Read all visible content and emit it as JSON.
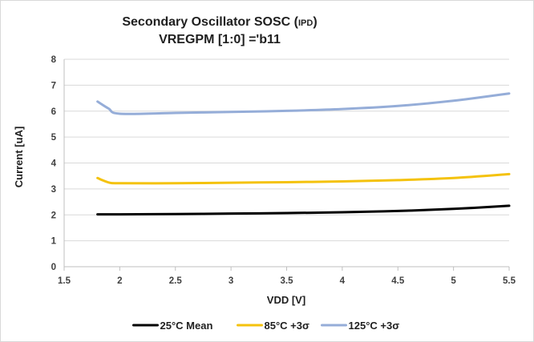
{
  "chart_data": {
    "type": "line",
    "title_line1": "Secondary Oscillator SOSC (",
    "title_subscript": "IPD",
    "title_line1_end": ")",
    "title_line2": "VREGPM [1:0] ='b11",
    "xlabel": "VDD [V]",
    "ylabel": "Current [uA]",
    "xlim": [
      1.5,
      5.5
    ],
    "ylim": [
      0,
      8
    ],
    "x_ticks": [
      "1.5",
      "2",
      "2.5",
      "3",
      "3.5",
      "4",
      "4.5",
      "5",
      "5.5"
    ],
    "y_ticks": [
      "0",
      "1",
      "2",
      "3",
      "4",
      "5",
      "6",
      "7",
      "8"
    ],
    "grid": "horizontal",
    "legend_position": "bottom",
    "series": [
      {
        "name": "25°C Mean",
        "color": "#000000",
        "points": [
          [
            1.8,
            2.02
          ],
          [
            2.0,
            2.02
          ],
          [
            2.5,
            2.03
          ],
          [
            3.0,
            2.05
          ],
          [
            3.5,
            2.07
          ],
          [
            4.0,
            2.1
          ],
          [
            4.5,
            2.15
          ],
          [
            5.0,
            2.23
          ],
          [
            5.5,
            2.35
          ]
        ]
      },
      {
        "name": "85°C +3σ",
        "color": "#f4c20d",
        "points": [
          [
            1.8,
            3.42
          ],
          [
            1.9,
            3.25
          ],
          [
            2.0,
            3.22
          ],
          [
            2.5,
            3.22
          ],
          [
            3.0,
            3.24
          ],
          [
            3.5,
            3.26
          ],
          [
            4.0,
            3.29
          ],
          [
            4.5,
            3.34
          ],
          [
            5.0,
            3.42
          ],
          [
            5.5,
            3.57
          ]
        ]
      },
      {
        "name": "125°C +3σ",
        "color": "#95add8",
        "points": [
          [
            1.8,
            6.37
          ],
          [
            1.9,
            6.1
          ],
          [
            2.0,
            5.9
          ],
          [
            2.5,
            5.93
          ],
          [
            3.0,
            5.97
          ],
          [
            3.5,
            6.01
          ],
          [
            4.0,
            6.08
          ],
          [
            4.5,
            6.2
          ],
          [
            5.0,
            6.4
          ],
          [
            5.5,
            6.68
          ]
        ]
      }
    ]
  }
}
